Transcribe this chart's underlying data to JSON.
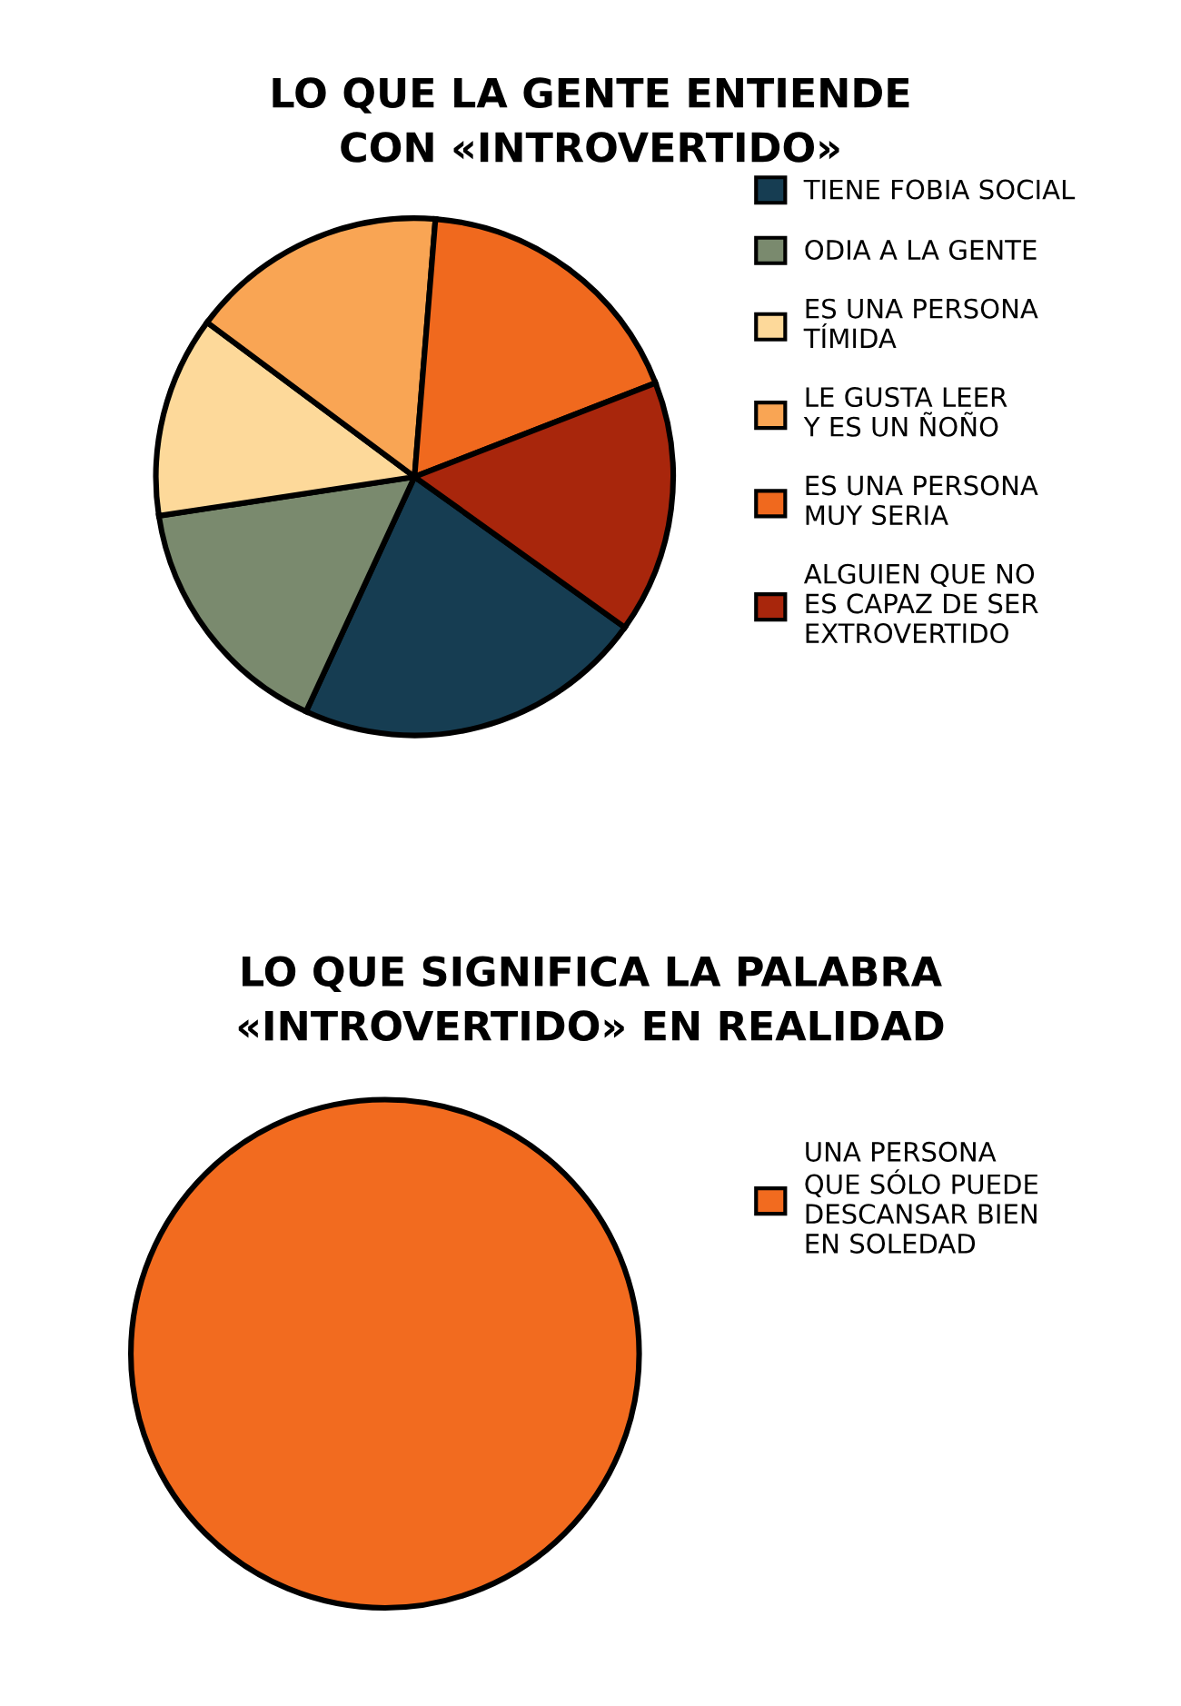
{
  "chart_data": [
    {
      "type": "pie",
      "title": "LO QUE LA GENTE ENTIENDE\nCON «INTROVERTIDO»",
      "categories": [
        "TIENE FOBIA SOCIAL",
        "ODIA A LA GENTE",
        "ES UNA PERSONA\nTÍMIDA",
        "LE GUSTA LEER\nY ES UN ÑOÑO",
        "ES UNA PERSONA\nMUY SERIA",
        "ALGUIEN QUE NO\nES CAPAZ DE SER\nEXTROVERTIDO"
      ],
      "values": [
        22.0,
        15.7,
        12.6,
        16.1,
        17.8,
        15.8
      ],
      "colors": [
        "#163d52",
        "#7a8a6e",
        "#fdd99a",
        "#f9a554",
        "#f0691e",
        "#a8260c"
      ],
      "legend": "right"
    },
    {
      "type": "pie",
      "title": "LO QUE SIGNIFICA LA PALABRA\n«INTROVERTIDO» EN REALIDAD",
      "categories": [
        "UNA PERSONA\nQUE SÓLO PUEDE\nDESCANSAR BIEN\nEN SOLEDAD"
      ],
      "values": [
        100
      ],
      "colors": [
        "#f26b1f"
      ],
      "legend": "right"
    }
  ]
}
